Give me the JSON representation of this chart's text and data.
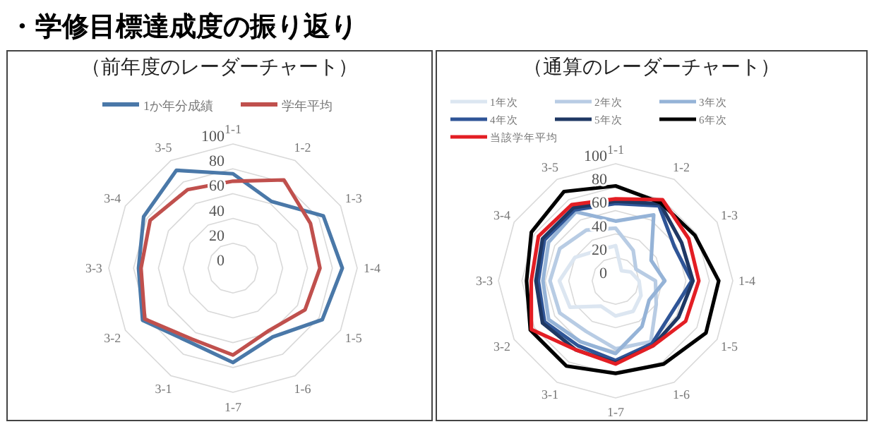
{
  "chart_data": [
    {
      "type": "radar",
      "title": "・学修目標達成度の振り返り",
      "subtitle": "（前年度のレーダーチャート）",
      "categories": [
        "1-1",
        "1-2",
        "1-3",
        "1-4",
        "1-5",
        "1-6",
        "1-7",
        "3-1",
        "3-2",
        "3-3",
        "3-4",
        "3-5"
      ],
      "ylim": [
        0,
        100
      ],
      "yticks": [
        0,
        20,
        40,
        60,
        80,
        100
      ],
      "grid": true,
      "legend": "top",
      "series": [
        {
          "name": "1か年分成績",
          "color": "#4a78a8",
          "values": [
            76,
            62,
            84,
            88,
            83,
            64,
            76,
            69,
            84,
            76,
            83,
            91
          ]
        },
        {
          "name": "学年平均",
          "color": "#c0504d",
          "values": [
            70,
            82,
            72,
            70,
            67,
            58,
            70,
            66,
            82,
            74,
            77,
            73
          ]
        }
      ]
    },
    {
      "type": "radar",
      "title": "（通算のレーダーチャート）",
      "categories": [
        "1-1",
        "1-2",
        "1-3",
        "1-4",
        "1-5",
        "1-6",
        "1-7",
        "3-1",
        "3-2",
        "3-3",
        "3-4",
        "3-5"
      ],
      "ylim": [
        0,
        100
      ],
      "yticks": [
        0,
        20,
        40,
        60,
        80,
        100
      ],
      "grid": true,
      "legend": "top left",
      "series": [
        {
          "name": "1年次",
          "color": "#dce6f1",
          "values": [
            30,
            10,
            15,
            20,
            25,
            30,
            30,
            25,
            45,
            48,
            40,
            30
          ]
        },
        {
          "name": "2年次",
          "color": "#b8cce4",
          "values": [
            45,
            30,
            20,
            34,
            40,
            60,
            58,
            50,
            55,
            56,
            55,
            50
          ]
        },
        {
          "name": "3年次",
          "color": "#95b3d7",
          "values": [
            51,
            65,
            35,
            42,
            33,
            45,
            62,
            60,
            66,
            62,
            66,
            68
          ]
        },
        {
          "name": "4年次",
          "color": "#2f5597",
          "values": [
            66,
            74,
            58,
            65,
            55,
            62,
            68,
            64,
            70,
            66,
            70,
            70
          ]
        },
        {
          "name": "5年次",
          "color": "#1f3864",
          "values": [
            68,
            76,
            65,
            66,
            62,
            64,
            70,
            68,
            72,
            68,
            72,
            72
          ]
        },
        {
          "name": "6年次",
          "color": "#000000",
          "values": [
            81,
            77,
            78,
            88,
            89,
            82,
            79,
            84,
            84,
            76,
            83,
            88
          ]
        },
        {
          "name": "当該学年平均",
          "color": "#e31e24",
          "values": [
            70,
            80,
            72,
            71,
            69,
            64,
            71,
            68,
            83,
            72,
            76,
            75
          ]
        }
      ]
    }
  ]
}
